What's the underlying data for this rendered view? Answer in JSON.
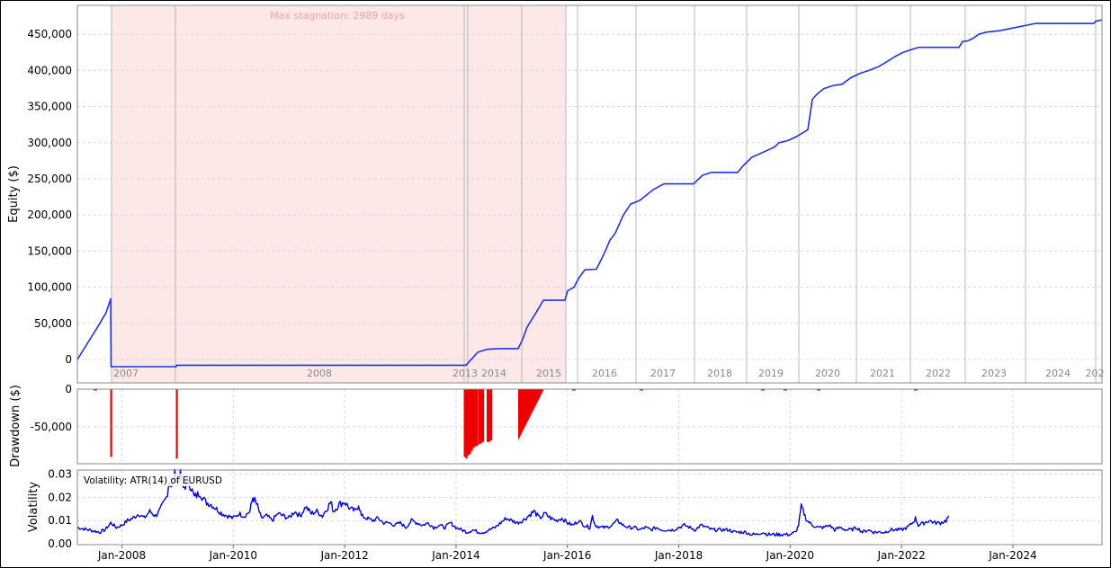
{
  "colors": {
    "equity_line": "#2233dd",
    "drawdown": "#ee0000",
    "volatility_line": "#0000dd",
    "stagnation_fill": "#fde8e8",
    "stagnation_text": "#f1a3a3",
    "grid": "#d8d8d8",
    "year_line": "#b8b8b8",
    "year_text": "#8a8a8a"
  },
  "chart_data": [
    {
      "type": "line",
      "name": "equity",
      "ylabel": "Equity ($)",
      "ylim": [
        -20000,
        490000
      ],
      "yticks": [
        0,
        50000,
        100000,
        150000,
        200000,
        250000,
        300000,
        350000,
        400000,
        450000
      ],
      "ytick_labels": [
        "0",
        "50,000",
        "100,000",
        "150,000",
        "200,000",
        "250,000",
        "300,000",
        "350,000",
        "400,000",
        "450,000"
      ],
      "annotation": "Max stagnation: 2989 days",
      "stagnation_period": [
        "2007-10",
        "2015-12"
      ],
      "segment_labels": [
        "2007",
        "2008",
        "2013",
        "2014",
        "2015",
        "2016",
        "2017",
        "2018",
        "2019",
        "2020",
        "2021",
        "2022",
        "2023",
        "2024",
        "202"
      ],
      "points": [
        [
          0,
          0
        ],
        [
          15,
          30000
        ],
        [
          25,
          50000
        ],
        [
          32,
          65000
        ],
        [
          37,
          84000
        ],
        [
          37.5,
          -10000
        ],
        [
          110,
          -10000
        ],
        [
          110.2,
          -8000
        ],
        [
          432,
          -8000
        ],
        [
          440,
          3000
        ],
        [
          445,
          10000
        ],
        [
          455,
          14000
        ],
        [
          470,
          15000
        ],
        [
          490,
          15000
        ],
        [
          495,
          28000
        ],
        [
          500,
          45000
        ],
        [
          510,
          65000
        ],
        [
          518,
          82000
        ],
        [
          542,
          82000
        ],
        [
          545,
          95000
        ],
        [
          552,
          100000
        ],
        [
          557,
          112000
        ],
        [
          564,
          124000
        ],
        [
          577,
          125000
        ],
        [
          585,
          145000
        ],
        [
          592,
          165000
        ],
        [
          598,
          175000
        ],
        [
          607,
          200000
        ],
        [
          615,
          215000
        ],
        [
          625,
          220000
        ],
        [
          640,
          235000
        ],
        [
          652,
          243000
        ],
        [
          685,
          243000
        ],
        [
          695,
          255000
        ],
        [
          705,
          259000
        ],
        [
          734,
          259000
        ],
        [
          740,
          268000
        ],
        [
          750,
          280000
        ],
        [
          768,
          290000
        ],
        [
          775,
          294000
        ],
        [
          780,
          300000
        ],
        [
          790,
          303000
        ],
        [
          800,
          309000
        ],
        [
          812,
          318000
        ],
        [
          817,
          360000
        ],
        [
          822,
          367000
        ],
        [
          830,
          375000
        ],
        [
          840,
          379000
        ],
        [
          850,
          381000
        ],
        [
          860,
          390000
        ],
        [
          870,
          396000
        ],
        [
          880,
          400000
        ],
        [
          890,
          405000
        ],
        [
          897,
          410000
        ],
        [
          910,
          420000
        ],
        [
          918,
          425000
        ],
        [
          925,
          428000
        ],
        [
          935,
          432000
        ],
        [
          980,
          432000
        ],
        [
          984,
          440000
        ],
        [
          990,
          441000
        ],
        [
          995,
          444000
        ],
        [
          1002,
          450000
        ],
        [
          1010,
          453000
        ],
        [
          1025,
          455000
        ],
        [
          1045,
          460000
        ],
        [
          1065,
          465000
        ],
        [
          1130,
          465000
        ],
        [
          1132,
          468000
        ],
        [
          1139,
          470000
        ]
      ]
    },
    {
      "type": "area",
      "name": "drawdown",
      "ylabel": "Drawdown ($)",
      "ylim": [
        -93000,
        0
      ],
      "yticks": [
        0,
        -50000
      ],
      "ytick_labels": [
        "0",
        "-50,000"
      ],
      "spikes": [
        [
          37.5,
          -90000
        ],
        [
          110.5,
          -92000
        ],
        [
          430.5,
          -90000
        ],
        [
          432.5,
          -92000
        ],
        [
          434.5,
          -88000
        ],
        [
          436.5,
          -86000
        ],
        [
          438.5,
          -82000
        ],
        [
          440.5,
          -78000
        ],
        [
          442.5,
          -76000
        ],
        [
          444.5,
          -75000
        ],
        [
          447,
          -73000
        ],
        [
          449,
          -72000
        ],
        [
          451,
          -70000
        ],
        [
          456,
          -70000
        ],
        [
          458,
          -70000
        ],
        [
          460,
          -68000
        ]
      ],
      "ramp": {
        "x_start": 490,
        "x_end": 518,
        "y_start": -68000,
        "y_end": -2000
      },
      "small_marks": [
        18,
        550,
        625,
        760,
        785,
        822,
        930
      ]
    },
    {
      "type": "line",
      "name": "volatility",
      "title": "Volatility: ATR(14) of EURUSD",
      "ylabel": "Volatility",
      "ylim": [
        0,
        0.032
      ],
      "yticks": [
        0,
        0.01,
        0.02,
        0.03
      ],
      "ytick_labels": [
        "0.00",
        "0.01",
        "0.02",
        "0.03"
      ],
      "xlabels": [
        "Jan-2008",
        "Jan-2010",
        "Jan-2012",
        "Jan-2014",
        "Jan-2016",
        "Jan-2018",
        "Jan-2020",
        "Jan-2022",
        "Jan-2024"
      ],
      "xlabel_positions": [
        2008.0,
        2010.0,
        2012.0,
        2014.0,
        2016.0,
        2018.0,
        2020.0,
        2022.0,
        2024.0
      ],
      "xlim": [
        2007.2,
        2025.6
      ],
      "points": [
        [
          2007.2,
          0.007
        ],
        [
          2007.4,
          0.006
        ],
        [
          2007.6,
          0.005
        ],
        [
          2007.7,
          0.006
        ],
        [
          2007.8,
          0.009
        ],
        [
          2007.9,
          0.007
        ],
        [
          2008.0,
          0.008
        ],
        [
          2008.1,
          0.01
        ],
        [
          2008.2,
          0.011
        ],
        [
          2008.3,
          0.013
        ],
        [
          2008.4,
          0.011
        ],
        [
          2008.5,
          0.014
        ],
        [
          2008.6,
          0.012
        ],
        [
          2008.7,
          0.015
        ],
        [
          2008.8,
          0.02
        ],
        [
          2008.85,
          0.027
        ],
        [
          2008.9,
          0.024
        ],
        [
          2008.95,
          0.031
        ],
        [
          2009.0,
          0.026
        ],
        [
          2009.05,
          0.03
        ],
        [
          2009.1,
          0.024
        ],
        [
          2009.2,
          0.027
        ],
        [
          2009.3,
          0.02
        ],
        [
          2009.4,
          0.022
        ],
        [
          2009.5,
          0.018
        ],
        [
          2009.6,
          0.017
        ],
        [
          2009.7,
          0.015
        ],
        [
          2009.8,
          0.013
        ],
        [
          2009.9,
          0.012
        ],
        [
          2010.0,
          0.011
        ],
        [
          2010.1,
          0.013
        ],
        [
          2010.2,
          0.012
        ],
        [
          2010.3,
          0.014
        ],
        [
          2010.35,
          0.02
        ],
        [
          2010.4,
          0.018
        ],
        [
          2010.45,
          0.015
        ],
        [
          2010.5,
          0.011
        ],
        [
          2010.6,
          0.012
        ],
        [
          2010.7,
          0.01
        ],
        [
          2010.8,
          0.013
        ],
        [
          2010.9,
          0.012
        ],
        [
          2011.0,
          0.011
        ],
        [
          2011.1,
          0.014
        ],
        [
          2011.2,
          0.012
        ],
        [
          2011.3,
          0.016
        ],
        [
          2011.4,
          0.013
        ],
        [
          2011.5,
          0.014
        ],
        [
          2011.6,
          0.012
        ],
        [
          2011.7,
          0.016
        ],
        [
          2011.75,
          0.018
        ],
        [
          2011.8,
          0.014
        ],
        [
          2011.9,
          0.017
        ],
        [
          2012.0,
          0.018
        ],
        [
          2012.1,
          0.015
        ],
        [
          2012.2,
          0.014
        ],
        [
          2012.25,
          0.017
        ],
        [
          2012.3,
          0.012
        ],
        [
          2012.4,
          0.011
        ],
        [
          2012.5,
          0.01
        ],
        [
          2012.6,
          0.011
        ],
        [
          2012.7,
          0.009
        ],
        [
          2012.8,
          0.009
        ],
        [
          2012.9,
          0.008
        ],
        [
          2013.0,
          0.009
        ],
        [
          2013.1,
          0.007
        ],
        [
          2013.2,
          0.01
        ],
        [
          2013.3,
          0.009
        ],
        [
          2013.4,
          0.008
        ],
        [
          2013.5,
          0.009
        ],
        [
          2013.6,
          0.007
        ],
        [
          2013.7,
          0.008
        ],
        [
          2013.8,
          0.007
        ],
        [
          2013.9,
          0.009
        ],
        [
          2014.0,
          0.007
        ],
        [
          2014.1,
          0.006
        ],
        [
          2014.2,
          0.005
        ],
        [
          2014.3,
          0.006
        ],
        [
          2014.4,
          0.005
        ],
        [
          2014.5,
          0.005
        ],
        [
          2014.6,
          0.006
        ],
        [
          2014.7,
          0.007
        ],
        [
          2014.8,
          0.009
        ],
        [
          2014.9,
          0.011
        ],
        [
          2015.0,
          0.01
        ],
        [
          2015.1,
          0.009
        ],
        [
          2015.2,
          0.01
        ],
        [
          2015.3,
          0.012
        ],
        [
          2015.4,
          0.014
        ],
        [
          2015.5,
          0.011
        ],
        [
          2015.6,
          0.013
        ],
        [
          2015.7,
          0.011
        ],
        [
          2015.8,
          0.01
        ],
        [
          2015.9,
          0.011
        ],
        [
          2016.0,
          0.009
        ],
        [
          2016.1,
          0.008
        ],
        [
          2016.2,
          0.01
        ],
        [
          2016.3,
          0.008
        ],
        [
          2016.4,
          0.007
        ],
        [
          2016.45,
          0.012
        ],
        [
          2016.5,
          0.008
        ],
        [
          2016.6,
          0.007
        ],
        [
          2016.7,
          0.007
        ],
        [
          2016.8,
          0.008
        ],
        [
          2016.9,
          0.01
        ],
        [
          2017.0,
          0.008
        ],
        [
          2017.1,
          0.007
        ],
        [
          2017.2,
          0.007
        ],
        [
          2017.3,
          0.006
        ],
        [
          2017.4,
          0.007
        ],
        [
          2017.5,
          0.006
        ],
        [
          2017.6,
          0.007
        ],
        [
          2017.7,
          0.006
        ],
        [
          2017.8,
          0.006
        ],
        [
          2017.9,
          0.006
        ],
        [
          2018.0,
          0.007
        ],
        [
          2018.1,
          0.008
        ],
        [
          2018.2,
          0.007
        ],
        [
          2018.3,
          0.006
        ],
        [
          2018.4,
          0.008
        ],
        [
          2018.5,
          0.007
        ],
        [
          2018.6,
          0.006
        ],
        [
          2018.7,
          0.006
        ],
        [
          2018.8,
          0.006
        ],
        [
          2018.9,
          0.006
        ],
        [
          2019.0,
          0.005
        ],
        [
          2019.1,
          0.005
        ],
        [
          2019.2,
          0.005
        ],
        [
          2019.3,
          0.004
        ],
        [
          2019.4,
          0.004
        ],
        [
          2019.5,
          0.005
        ],
        [
          2019.6,
          0.004
        ],
        [
          2019.7,
          0.004
        ],
        [
          2019.8,
          0.004
        ],
        [
          2019.9,
          0.004
        ],
        [
          2020.0,
          0.004
        ],
        [
          2020.1,
          0.005
        ],
        [
          2020.15,
          0.008
        ],
        [
          2020.2,
          0.016
        ],
        [
          2020.25,
          0.013
        ],
        [
          2020.3,
          0.01
        ],
        [
          2020.4,
          0.008
        ],
        [
          2020.5,
          0.007
        ],
        [
          2020.6,
          0.007
        ],
        [
          2020.7,
          0.008
        ],
        [
          2020.8,
          0.006
        ],
        [
          2020.9,
          0.007
        ],
        [
          2021.0,
          0.006
        ],
        [
          2021.1,
          0.006
        ],
        [
          2021.2,
          0.007
        ],
        [
          2021.3,
          0.005
        ],
        [
          2021.4,
          0.006
        ],
        [
          2021.5,
          0.005
        ],
        [
          2021.6,
          0.005
        ],
        [
          2021.7,
          0.005
        ],
        [
          2021.8,
          0.006
        ],
        [
          2021.9,
          0.006
        ],
        [
          2022.0,
          0.006
        ],
        [
          2022.1,
          0.007
        ],
        [
          2022.2,
          0.009
        ],
        [
          2022.25,
          0.011
        ],
        [
          2022.3,
          0.008
        ],
        [
          2022.4,
          0.009
        ],
        [
          2022.5,
          0.01
        ],
        [
          2022.6,
          0.009
        ],
        [
          2022.7,
          0.009
        ],
        [
          2022.8,
          0.01
        ],
        [
          2022.85,
          0.012
        ]
      ]
    }
  ]
}
